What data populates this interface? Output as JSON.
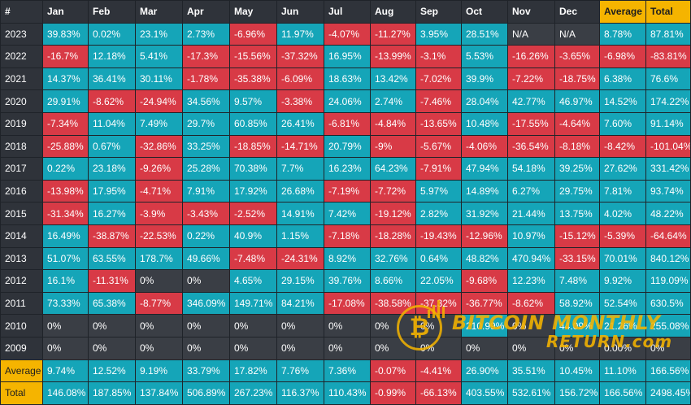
{
  "colors": {
    "positive": "#15a5b8",
    "negative": "#d83a46",
    "neutral": "#3a3e45",
    "highlight": "#f5b400",
    "header": "#2f333a"
  },
  "headers": [
    "#",
    "Jan",
    "Feb",
    "Mar",
    "Apr",
    "May",
    "Jun",
    "Jul",
    "Aug",
    "Sep",
    "Oct",
    "Nov",
    "Dec",
    "Average",
    "Total"
  ],
  "rows": [
    {
      "label": "2023",
      "cells": [
        "39.83%",
        "0.02%",
        "23.1%",
        "2.73%",
        "-6.96%",
        "11.97%",
        "-4.07%",
        "-11.27%",
        "3.95%",
        "28.51%",
        "N/A",
        "N/A",
        "8.78%",
        "87.81%"
      ]
    },
    {
      "label": "2022",
      "cells": [
        "-16.7%",
        "12.18%",
        "5.41%",
        "-17.3%",
        "-15.56%",
        "-37.32%",
        "16.95%",
        "-13.99%",
        "-3.1%",
        "5.53%",
        "-16.26%",
        "-3.65%",
        "-6.98%",
        "-83.81%"
      ]
    },
    {
      "label": "2021",
      "cells": [
        "14.37%",
        "36.41%",
        "30.11%",
        "-1.78%",
        "-35.38%",
        "-6.09%",
        "18.63%",
        "13.42%",
        "-7.02%",
        "39.9%",
        "-7.22%",
        "-18.75%",
        "6.38%",
        "76.6%"
      ]
    },
    {
      "label": "2020",
      "cells": [
        "29.91%",
        "-8.62%",
        "-24.94%",
        "34.56%",
        "9.57%",
        "-3.38%",
        "24.06%",
        "2.74%",
        "-7.46%",
        "28.04%",
        "42.77%",
        "46.97%",
        "14.52%",
        "174.22%"
      ]
    },
    {
      "label": "2019",
      "cells": [
        "-7.34%",
        "11.04%",
        "7.49%",
        "29.7%",
        "60.85%",
        "26.41%",
        "-6.81%",
        "-4.84%",
        "-13.65%",
        "10.48%",
        "-17.55%",
        "-4.64%",
        "7.60%",
        "91.14%"
      ]
    },
    {
      "label": "2018",
      "cells": [
        "-25.88%",
        "0.67%",
        "-32.86%",
        "33.25%",
        "-18.85%",
        "-14.71%",
        "20.79%",
        "-9%",
        "-5.67%",
        "-4.06%",
        "-36.54%",
        "-8.18%",
        "-8.42%",
        "-101.04%"
      ]
    },
    {
      "label": "2017",
      "cells": [
        "0.22%",
        "23.18%",
        "-9.26%",
        "25.28%",
        "70.38%",
        "7.7%",
        "16.23%",
        "64.23%",
        "-7.91%",
        "47.94%",
        "54.18%",
        "39.25%",
        "27.62%",
        "331.42%"
      ]
    },
    {
      "label": "2016",
      "cells": [
        "-13.98%",
        "17.95%",
        "-4.71%",
        "7.91%",
        "17.92%",
        "26.68%",
        "-7.19%",
        "-7.72%",
        "5.97%",
        "14.89%",
        "6.27%",
        "29.75%",
        "7.81%",
        "93.74%"
      ]
    },
    {
      "label": "2015",
      "cells": [
        "-31.34%",
        "16.27%",
        "-3.9%",
        "-3.43%",
        "-2.52%",
        "14.91%",
        "7.42%",
        "-19.12%",
        "2.82%",
        "31.92%",
        "21.44%",
        "13.75%",
        "4.02%",
        "48.22%"
      ]
    },
    {
      "label": "2014",
      "cells": [
        "16.49%",
        "-38.87%",
        "-22.53%",
        "0.22%",
        "40.9%",
        "1.15%",
        "-7.18%",
        "-18.28%",
        "-19.43%",
        "-12.96%",
        "10.97%",
        "-15.12%",
        "-5.39%",
        "-64.64%"
      ]
    },
    {
      "label": "2013",
      "cells": [
        "51.07%",
        "63.55%",
        "178.7%",
        "49.66%",
        "-7.48%",
        "-24.31%",
        "8.92%",
        "32.76%",
        "0.64%",
        "48.82%",
        "470.94%",
        "-33.15%",
        "70.01%",
        "840.12%"
      ]
    },
    {
      "label": "2012",
      "cells": [
        "16.1%",
        "-11.31%",
        "0%",
        "0%",
        "4.65%",
        "29.15%",
        "39.76%",
        "8.66%",
        "22.05%",
        "-9.68%",
        "12.23%",
        "7.48%",
        "9.92%",
        "119.09%"
      ]
    },
    {
      "label": "2011",
      "cells": [
        "73.33%",
        "65.38%",
        "-8.77%",
        "346.09%",
        "149.71%",
        "84.21%",
        "-17.08%",
        "-38.58%",
        "-37.32%",
        "-36.77%",
        "-8.62%",
        "58.92%",
        "52.54%",
        "630.5%"
      ]
    },
    {
      "label": "2010",
      "cells": [
        "0%",
        "0%",
        "0%",
        "0%",
        "0%",
        "0%",
        "0%",
        "0%",
        "0%",
        "210.99%",
        "0%",
        "44.09%",
        "21.26%",
        "255.08%"
      ]
    },
    {
      "label": "2009",
      "cells": [
        "0%",
        "0%",
        "0%",
        "0%",
        "0%",
        "0%",
        "0%",
        "0%",
        "0%",
        "0%",
        "0%",
        "0%",
        "0.00%",
        "0%"
      ]
    },
    {
      "label": "Average",
      "cells": [
        "9.74%",
        "12.52%",
        "9.19%",
        "33.79%",
        "17.82%",
        "7.76%",
        "7.36%",
        "-0.07%",
        "-4.41%",
        "26.90%",
        "35.51%",
        "10.45%",
        "11.10%",
        "166.56%"
      ]
    },
    {
      "label": "Total",
      "cells": [
        "146.08%",
        "187.85%",
        "137.84%",
        "506.89%",
        "267.23%",
        "116.37%",
        "110.43%",
        "-0.99%",
        "-66.13%",
        "403.55%",
        "532.61%",
        "156.72%",
        "166.56%",
        "2498.45%"
      ]
    }
  ],
  "watermark": {
    "line1": "BITCOIN MONTHLY",
    "line2": "RETURN.com",
    "coin_icon": "bitcoin-coin-icon",
    "coin_glyph": "₿"
  }
}
